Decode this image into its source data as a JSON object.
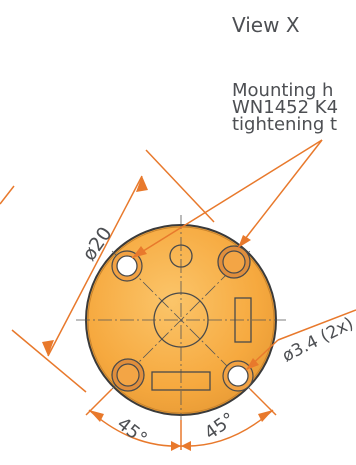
{
  "view": {
    "title": "View X"
  },
  "note": {
    "line1": "Mounting h",
    "line2": "WN1452 K4",
    "line3": "tightening t"
  },
  "dimensions": {
    "diameter_outer": "ø20",
    "diameter_holes": "ø3.4 (2x)",
    "angle_left": "45°",
    "angle_right": "45°"
  },
  "colors": {
    "body_fill": "#f7b04a",
    "body_edge": "#3a3a3a",
    "dimension_line": "#e8792c",
    "leader_line": "#e8792c",
    "text": "#4d4f53"
  }
}
